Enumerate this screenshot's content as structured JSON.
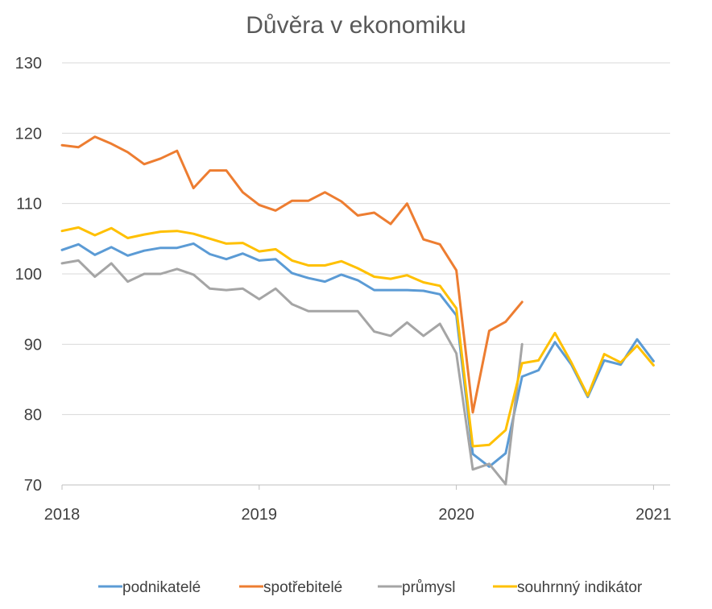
{
  "chart_data": {
    "type": "line",
    "title": "Důvěra v ekonomiku",
    "xlabel": "",
    "ylabel": "",
    "ylim": [
      70,
      130
    ],
    "yticks": [
      "70",
      "80",
      "90",
      "100",
      "110",
      "120",
      "130"
    ],
    "xlim": [
      0,
      36.5
    ],
    "xticks": [
      {
        "label": "2018",
        "x": 0
      },
      {
        "label": "2019",
        "x": 12
      },
      {
        "label": "2020",
        "x": 24
      },
      {
        "label": "2021",
        "x": 36
      }
    ],
    "grid": true,
    "legend_position": "bottom",
    "x_months": [
      "2018-01",
      "2018-02",
      "2018-03",
      "2018-04",
      "2018-05",
      "2018-06",
      "2018-07",
      "2018-08",
      "2018-09",
      "2018-10",
      "2018-11",
      "2018-12",
      "2019-01",
      "2019-02",
      "2019-03",
      "2019-04",
      "2019-05",
      "2019-06",
      "2019-07",
      "2019-08",
      "2019-09",
      "2019-10",
      "2019-11",
      "2019-12",
      "2020-01",
      "2020-02",
      "2020-03",
      "2020-04",
      "2020-05",
      "2020-06",
      "2020-07",
      "2020-08",
      "2020-09",
      "2020-10",
      "2020-11",
      "2020-12",
      "2021-01"
    ],
    "series": [
      {
        "name": "podnikatelé",
        "color": "#5b9bd5",
        "values": [
          103.4,
          104.2,
          102.7,
          103.8,
          102.6,
          103.3,
          103.7,
          103.7,
          104.3,
          102.8,
          102.1,
          102.9,
          101.9,
          102.1,
          100.1,
          99.4,
          98.9,
          99.9,
          99.1,
          97.7,
          97.7,
          97.7,
          97.6,
          97.1,
          94.1,
          74.4,
          72.6,
          74.5,
          85.4,
          86.3,
          90.3,
          87.1,
          82.5,
          87.7,
          87.1,
          90.7,
          87.6
        ]
      },
      {
        "name": "spotřebitelé",
        "color": "#ed7d31",
        "values": [
          118.3,
          118.0,
          119.5,
          118.5,
          117.3,
          115.6,
          116.4,
          117.5,
          112.2,
          114.7,
          114.7,
          111.6,
          109.8,
          109.0,
          110.4,
          110.4,
          111.6,
          110.3,
          108.3,
          108.7,
          107.1,
          110.0,
          104.9,
          104.2,
          100.5,
          80.3,
          91.9,
          93.2,
          96.0,
          null,
          null,
          null,
          null,
          null,
          null,
          null,
          null
        ]
      },
      {
        "name": "průmysl",
        "color": "#a5a5a5",
        "values": [
          101.5,
          101.9,
          99.6,
          101.5,
          98.9,
          100.0,
          100.0,
          100.7,
          99.9,
          97.9,
          97.7,
          97.9,
          96.4,
          97.9,
          95.7,
          94.7,
          94.7,
          94.7,
          94.7,
          91.8,
          91.2,
          93.1,
          91.2,
          92.9,
          88.7,
          72.2,
          73.0,
          70.1,
          90.0,
          null,
          null,
          null,
          null,
          null,
          null,
          null,
          null
        ]
      },
      {
        "name": "souhrnný indikátor",
        "color": "#ffc000",
        "values": [
          106.1,
          106.6,
          105.5,
          106.5,
          105.1,
          105.6,
          106.0,
          106.1,
          105.7,
          105.0,
          104.3,
          104.4,
          103.2,
          103.5,
          101.9,
          101.2,
          101.2,
          101.8,
          100.8,
          99.6,
          99.3,
          99.8,
          98.8,
          98.3,
          95.1,
          75.5,
          75.7,
          77.8,
          87.3,
          87.7,
          91.6,
          87.4,
          82.7,
          88.6,
          87.4,
          89.8,
          87.0
        ]
      }
    ]
  }
}
